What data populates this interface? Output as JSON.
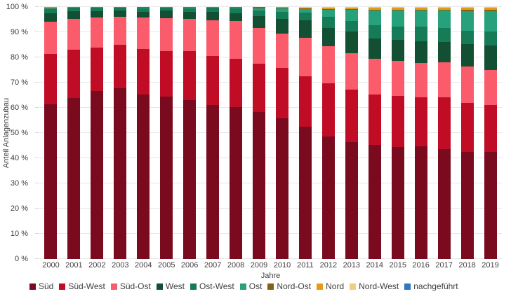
{
  "chart_data": {
    "type": "bar",
    "stacked": true,
    "title": "",
    "xlabel": "Jahre",
    "ylabel": "Anteil Anlagenzubau",
    "ylim": [
      0,
      100
    ],
    "grid": true,
    "legend_position": "bottom",
    "ytick_labels": [
      "0 %",
      "10 %",
      "20 %",
      "30 %",
      "40 %",
      "50 %",
      "60 %",
      "70 %",
      "80 %",
      "90 %",
      "100 %"
    ],
    "ytick_values": [
      0,
      10,
      20,
      30,
      40,
      50,
      60,
      70,
      80,
      90,
      100
    ],
    "categories": [
      "2000",
      "2001",
      "2002",
      "2003",
      "2004",
      "2005",
      "2006",
      "2007",
      "2008",
      "2009",
      "2010",
      "2011",
      "2012",
      "2013",
      "2014",
      "2015",
      "2016",
      "2017",
      "2018",
      "2019"
    ],
    "series": [
      {
        "name": "Süd",
        "color": "#7a0a1e",
        "values": [
          61.5,
          64.0,
          66.8,
          67.8,
          65.3,
          64.5,
          63.0,
          61.0,
          60.3,
          58.2,
          55.8,
          52.5,
          48.6,
          46.3,
          45.2,
          44.4,
          44.6,
          43.7,
          42.6,
          42.4
        ]
      },
      {
        "name": "Süd-West",
        "color": "#c00d25",
        "values": [
          20.0,
          19.0,
          17.2,
          17.2,
          17.9,
          18.0,
          19.5,
          19.5,
          19.2,
          19.3,
          20.1,
          19.9,
          21.1,
          20.9,
          20.2,
          20.2,
          19.6,
          20.4,
          19.4,
          18.7
        ]
      },
      {
        "name": "Süd-Ost",
        "color": "#fb5c6b",
        "values": [
          12.8,
          12.2,
          11.8,
          11.2,
          12.7,
          13.1,
          12.8,
          14.3,
          15.0,
          14.1,
          13.6,
          15.5,
          14.7,
          14.5,
          14.0,
          13.9,
          13.6,
          14.1,
          14.4,
          13.9
        ]
      },
      {
        "name": "West",
        "color": "#124f33",
        "values": [
          3.2,
          3.1,
          2.5,
          2.5,
          2.3,
          2.9,
          2.7,
          3.2,
          3.0,
          4.8,
          5.9,
          6.9,
          7.3,
          8.6,
          8.1,
          8.4,
          8.5,
          7.9,
          8.8,
          9.7
        ]
      },
      {
        "name": "Ost-West",
        "color": "#167c58",
        "values": [
          1.7,
          1.4,
          1.4,
          1.1,
          1.3,
          1.2,
          1.5,
          1.7,
          2.0,
          2.3,
          2.7,
          3.0,
          4.4,
          4.1,
          5.3,
          5.2,
          5.8,
          5.6,
          5.5,
          5.6
        ]
      },
      {
        "name": "Ost",
        "color": "#26a17c",
        "values": [
          0.3,
          0.3,
          0.3,
          0.2,
          0.3,
          0.3,
          0.3,
          0.3,
          0.3,
          0.9,
          1.3,
          1.4,
          2.9,
          4.4,
          5.8,
          6.5,
          6.4,
          6.8,
          7.6,
          8.0
        ]
      },
      {
        "name": "Nord-Ost",
        "color": "#7d6416",
        "values": [
          0.3,
          0.0,
          0.0,
          0.0,
          0.2,
          0.0,
          0.0,
          0.0,
          0.0,
          0.4,
          0.2,
          0.2,
          0.2,
          0.3,
          0.4,
          0.4,
          0.4,
          0.4,
          0.5,
          0.5
        ]
      },
      {
        "name": "Nord",
        "color": "#e79a15",
        "values": [
          0.1,
          0.0,
          0.0,
          0.0,
          0.0,
          0.0,
          0.0,
          0.0,
          0.0,
          0.0,
          0.3,
          0.4,
          0.6,
          0.7,
          0.8,
          0.8,
          0.9,
          0.9,
          1.0,
          1.0
        ]
      },
      {
        "name": "Nord-West",
        "color": "#f3cd7f",
        "values": [
          0.1,
          0.0,
          0.0,
          0.0,
          0.0,
          0.0,
          0.0,
          0.0,
          0.0,
          0.0,
          0.1,
          0.2,
          0.2,
          0.2,
          0.2,
          0.2,
          0.2,
          0.2,
          0.2,
          0.2
        ]
      },
      {
        "name": "nachgeführt",
        "color": "#2e79bd",
        "values": [
          0.0,
          0.0,
          0.0,
          0.0,
          0.0,
          0.0,
          0.2,
          0.0,
          0.2,
          0.0,
          0.0,
          0.0,
          0.0,
          0.0,
          0.0,
          0.0,
          0.0,
          0.0,
          0.0,
          0.0
        ]
      }
    ],
    "colors": {
      "text": "#404040",
      "gridline": "#e7e7e7",
      "background": "#ffffff"
    }
  }
}
